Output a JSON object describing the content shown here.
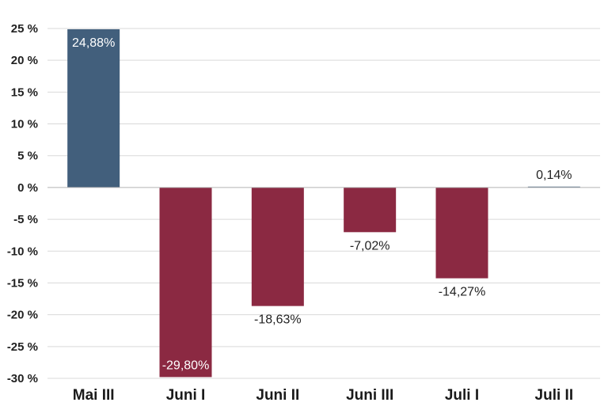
{
  "chart_data": {
    "type": "bar",
    "categories": [
      "Mai III",
      "Juni I",
      "Juni II",
      "Juni III",
      "Juli I",
      "Juli II"
    ],
    "values": [
      24.88,
      -29.8,
      -18.63,
      -7.02,
      -14.27,
      0.14
    ],
    "value_labels": [
      "24,88%",
      "-29,80%",
      "-18,63%",
      "-7,02%",
      "-14,27%",
      "0,14%"
    ],
    "title": "",
    "xlabel": "",
    "ylabel": "",
    "ylim": [
      -30,
      25
    ],
    "yticks": [
      25,
      20,
      15,
      10,
      5,
      0,
      -5,
      -10,
      -15,
      -20,
      -25,
      -30
    ],
    "ytick_labels": [
      "25 %",
      "20 %",
      "15 %",
      "10 %",
      "5 %",
      "0 %",
      "-5 %",
      "-10 %",
      "-15 %",
      "-20 %",
      "-25 %",
      "-30 %"
    ],
    "grid": true,
    "legend": "none",
    "colors": {
      "positive": "#425f7c",
      "negative": "#8b2942",
      "label_inside": "#ffffff",
      "label_outside": "#222222",
      "grid": "#d9d9d9"
    }
  }
}
